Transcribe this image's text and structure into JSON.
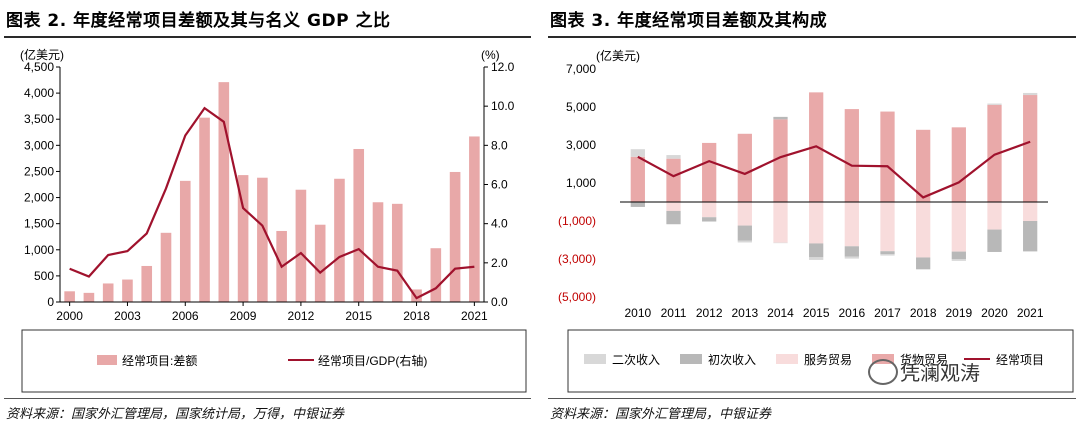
{
  "left": {
    "title": "图表 2. 年度经常项目差额及其与名义 GDP 之比",
    "y_unit": "(亿美元)",
    "y2_unit": "(%)",
    "source": "资料来源：国家外汇管理局，国家统计局，万得，中银证券",
    "legend": {
      "bar": "经常项目:差额",
      "line": "经常项目/GDP(右轴)"
    }
  },
  "right": {
    "title": "图表 3. 年度经常项目差额及其构成",
    "y_unit": "(亿美元)",
    "source": "资料来源：国家外汇管理局，中银证券",
    "legend": [
      "二次收入",
      "初次收入",
      "服务贸易",
      "货物贸易",
      "经常项目"
    ]
  },
  "watermark": "凭澜观涛",
  "colors": {
    "bar": "#e8a8a8",
    "line": "#a0122d",
    "secondary": "#d8d8d8",
    "primary_income": "#b8b8b8",
    "services": "#f8dcdc",
    "goods": "#e9a9a9",
    "neg_label": "#c00000"
  },
  "chart_data": [
    {
      "type": "bar",
      "x": [
        "2000",
        "2001",
        "2002",
        "2003",
        "2004",
        "2005",
        "2006",
        "2007",
        "2008",
        "2009",
        "2010",
        "2011",
        "2012",
        "2013",
        "2014",
        "2015",
        "2016",
        "2017",
        "2018",
        "2019",
        "2020",
        "2021"
      ],
      "x_tick_labels": [
        "2000",
        "2003",
        "2006",
        "2009",
        "2012",
        "2015",
        "2018",
        "2021"
      ],
      "ylim": [
        0,
        4500
      ],
      "y_ticks": [
        "0",
        "500",
        "1,000",
        "1,500",
        "2,000",
        "2,500",
        "3,000",
        "3,500",
        "4,000",
        "4,500"
      ],
      "y2lim": [
        0,
        12
      ],
      "y2_ticks": [
        "0.0",
        "2.0",
        "4.0",
        "6.0",
        "8.0",
        "10.0",
        "12.0"
      ],
      "series": [
        {
          "name": "经常项目:差额",
          "type": "bar",
          "axis": "left",
          "values": [
            205,
            175,
            355,
            430,
            690,
            1325,
            2320,
            3530,
            4210,
            2430,
            2380,
            1360,
            2150,
            1480,
            2360,
            2930,
            1910,
            1880,
            240,
            1030,
            2490,
            3170
          ]
        },
        {
          "name": "经常项目/GDP(右轴)",
          "type": "line",
          "axis": "right",
          "values": [
            1.7,
            1.3,
            2.4,
            2.6,
            3.5,
            5.8,
            8.5,
            9.9,
            9.2,
            4.8,
            3.9,
            1.8,
            2.5,
            1.5,
            2.3,
            2.7,
            1.8,
            1.6,
            0.2,
            0.7,
            1.7,
            1.8
          ]
        }
      ]
    },
    {
      "type": "bar",
      "stacked": true,
      "x": [
        "2010",
        "2011",
        "2012",
        "2013",
        "2014",
        "2015",
        "2016",
        "2017",
        "2018",
        "2019",
        "2020",
        "2021"
      ],
      "ylim": [
        -5000,
        7000
      ],
      "y_ticks": [
        "(5,000)",
        "(3,000)",
        "(1,000)",
        "1,000",
        "3,000",
        "5,000",
        "7,000"
      ],
      "series": [
        {
          "name": "二次收入",
          "values": [
            400,
            190,
            -50,
            -90,
            -10,
            -140,
            -100,
            -70,
            -30,
            -100,
            70,
            110
          ]
        },
        {
          "name": "初次收入",
          "values": [
            -260,
            -700,
            -200,
            -800,
            130,
            -730,
            -550,
            -160,
            -610,
            -390,
            -1180,
            -1600
          ]
        },
        {
          "name": "服务贸易",
          "values": [
            0,
            -470,
            -800,
            -1240,
            -2140,
            -2180,
            -2330,
            -2590,
            -2920,
            -2610,
            -1450,
            -1000
          ]
        },
        {
          "name": "货物贸易",
          "values": [
            2380,
            2280,
            3110,
            3590,
            4350,
            5770,
            4890,
            4760,
            3800,
            3930,
            5110,
            5630
          ]
        },
        {
          "name": "经常项目",
          "type": "line",
          "values": [
            2380,
            1360,
            2150,
            1480,
            2360,
            2930,
            1910,
            1880,
            240,
            1030,
            2490,
            3170
          ]
        }
      ]
    }
  ]
}
